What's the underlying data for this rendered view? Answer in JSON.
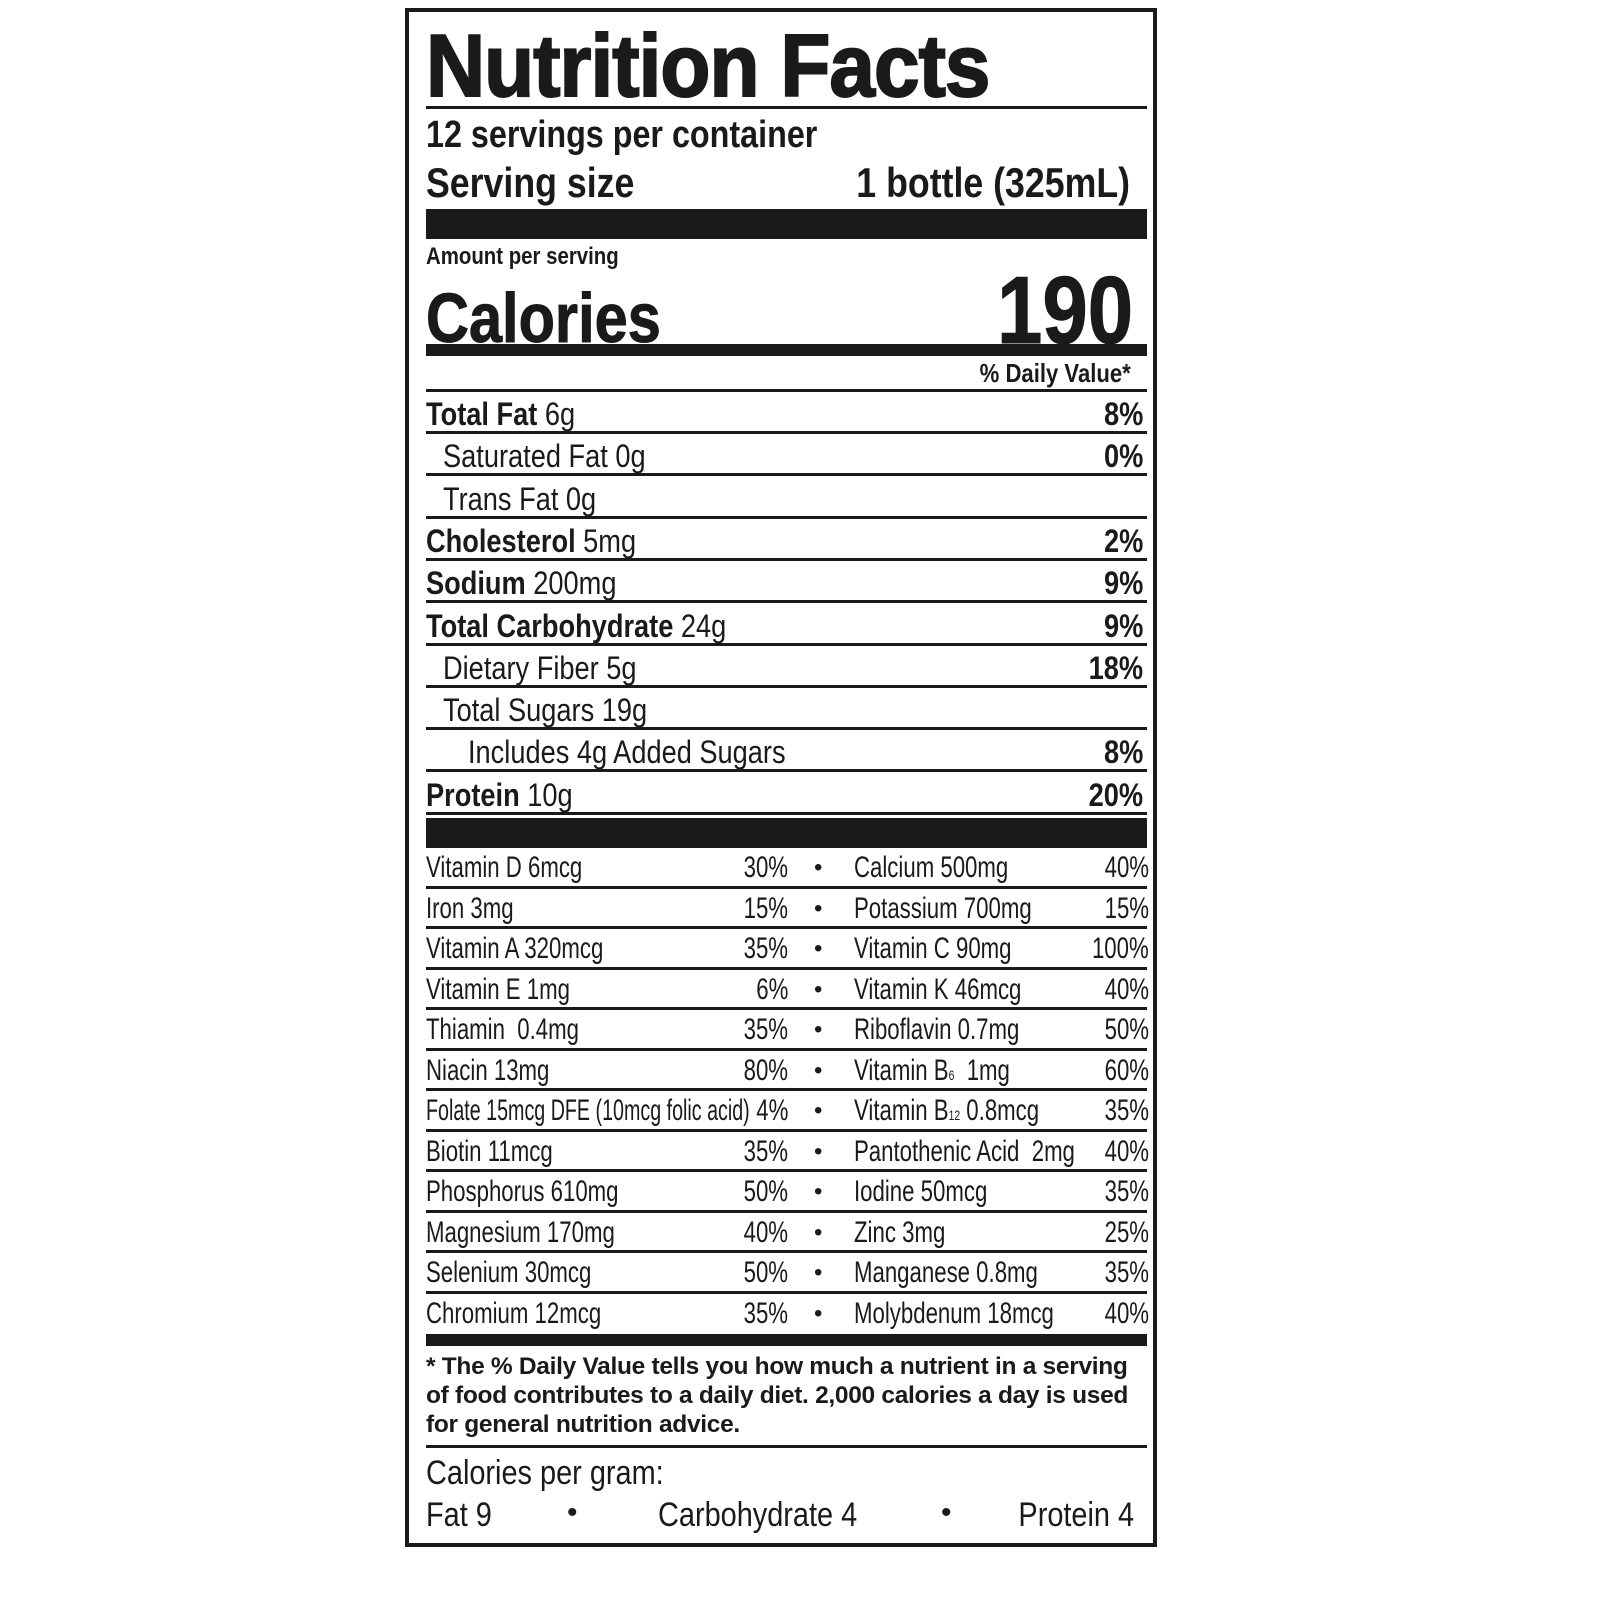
{
  "title": "Nutrition Facts",
  "servings_per_container": "12 servings per container",
  "serving_size_label": "Serving size",
  "serving_size_value": "1 bottle (325mL)",
  "amount_per_serving": "Amount per serving",
  "calories_label": "Calories",
  "calories_value": "190",
  "daily_value_header": "% Daily Value*",
  "nutrients": [
    {
      "name": "Total Fat",
      "amount": "6g",
      "dv": "8%",
      "bold": true,
      "indent": 0
    },
    {
      "name": "Saturated Fat",
      "amount": "0g",
      "dv": "0%",
      "bold": false,
      "indent": 1
    },
    {
      "name": "Trans Fat",
      "amount": "0g",
      "dv": "",
      "bold": false,
      "indent": 1
    },
    {
      "name": "Cholesterol",
      "amount": "5mg",
      "dv": "2%",
      "bold": true,
      "indent": 0
    },
    {
      "name": "Sodium",
      "amount": "200mg",
      "dv": "9%",
      "bold": true,
      "indent": 0
    },
    {
      "name": "Total Carbohydrate",
      "amount": "24g",
      "dv": "9%",
      "bold": true,
      "indent": 0
    },
    {
      "name": "Dietary Fiber",
      "amount": "5g",
      "dv": "18%",
      "bold": false,
      "indent": 1
    },
    {
      "name": "Total Sugars",
      "amount": "19g",
      "dv": "",
      "bold": false,
      "indent": 1
    },
    {
      "name": "Includes 4g Added Sugars",
      "amount": "",
      "dv": "8%",
      "bold": false,
      "indent": 2
    },
    {
      "name": "Protein",
      "amount": "10g",
      "dv": "20%",
      "bold": true,
      "indent": 0
    }
  ],
  "vitamins": [
    [
      {
        "name": "Vitamin D 6mcg",
        "dv": "30%"
      },
      {
        "name": "Calcium 500mg",
        "dv": "40%"
      }
    ],
    [
      {
        "name": "Iron 3mg",
        "dv": "15%"
      },
      {
        "name": "Potassium 700mg",
        "dv": "15%"
      }
    ],
    [
      {
        "name": "Vitamin A 320mcg",
        "dv": "35%"
      },
      {
        "name": "Vitamin C 90mg",
        "dv": "100%"
      }
    ],
    [
      {
        "name": "Vitamin E 1mg",
        "dv": "6%"
      },
      {
        "name": "Vitamin K 46mcg",
        "dv": "40%"
      }
    ],
    [
      {
        "name": "Thiamin  0.4mg",
        "dv": "35%"
      },
      {
        "name": "Riboflavin 0.7mg",
        "dv": "50%"
      }
    ],
    [
      {
        "name": "Niacin 13mg",
        "dv": "80%"
      },
      {
        "name": "Vitamin B",
        "sub": "6",
        "after": "  1mg",
        "dv": "60%"
      }
    ],
    [
      {
        "name": "Folate 15mcg DFE (10mcg folic acid)",
        "dv": "4%"
      },
      {
        "name": "Vitamin B",
        "sub": "12",
        "after": " 0.8mcg",
        "dv": "35%"
      }
    ],
    [
      {
        "name": "Biotin 11mcg",
        "dv": "35%"
      },
      {
        "name": "Pantothenic Acid  2mg",
        "dv": "40%"
      }
    ],
    [
      {
        "name": "Phosphorus 610mg",
        "dv": "50%"
      },
      {
        "name": "Iodine 50mcg",
        "dv": "35%"
      }
    ],
    [
      {
        "name": "Magnesium 170mg",
        "dv": "40%"
      },
      {
        "name": "Zinc 3mg",
        "dv": "25%"
      }
    ],
    [
      {
        "name": "Selenium 30mcg",
        "dv": "50%"
      },
      {
        "name": "Manganese 0.8mg",
        "dv": "35%"
      }
    ],
    [
      {
        "name": "Chromium 12mcg",
        "dv": "35%"
      },
      {
        "name": "Molybdenum 18mcg",
        "dv": "40%"
      }
    ]
  ],
  "footnote": "* The % Daily Value tells you how much a nutrient in a serving of food contributes to a daily diet. 2,000 calories a day is used for general nutrition advice.",
  "calories_per_gram_label": "Calories per gram:",
  "calories_per_gram": [
    "Fat 9",
    "Carbohydrate 4",
    "Protein 4"
  ],
  "bullet": "•"
}
